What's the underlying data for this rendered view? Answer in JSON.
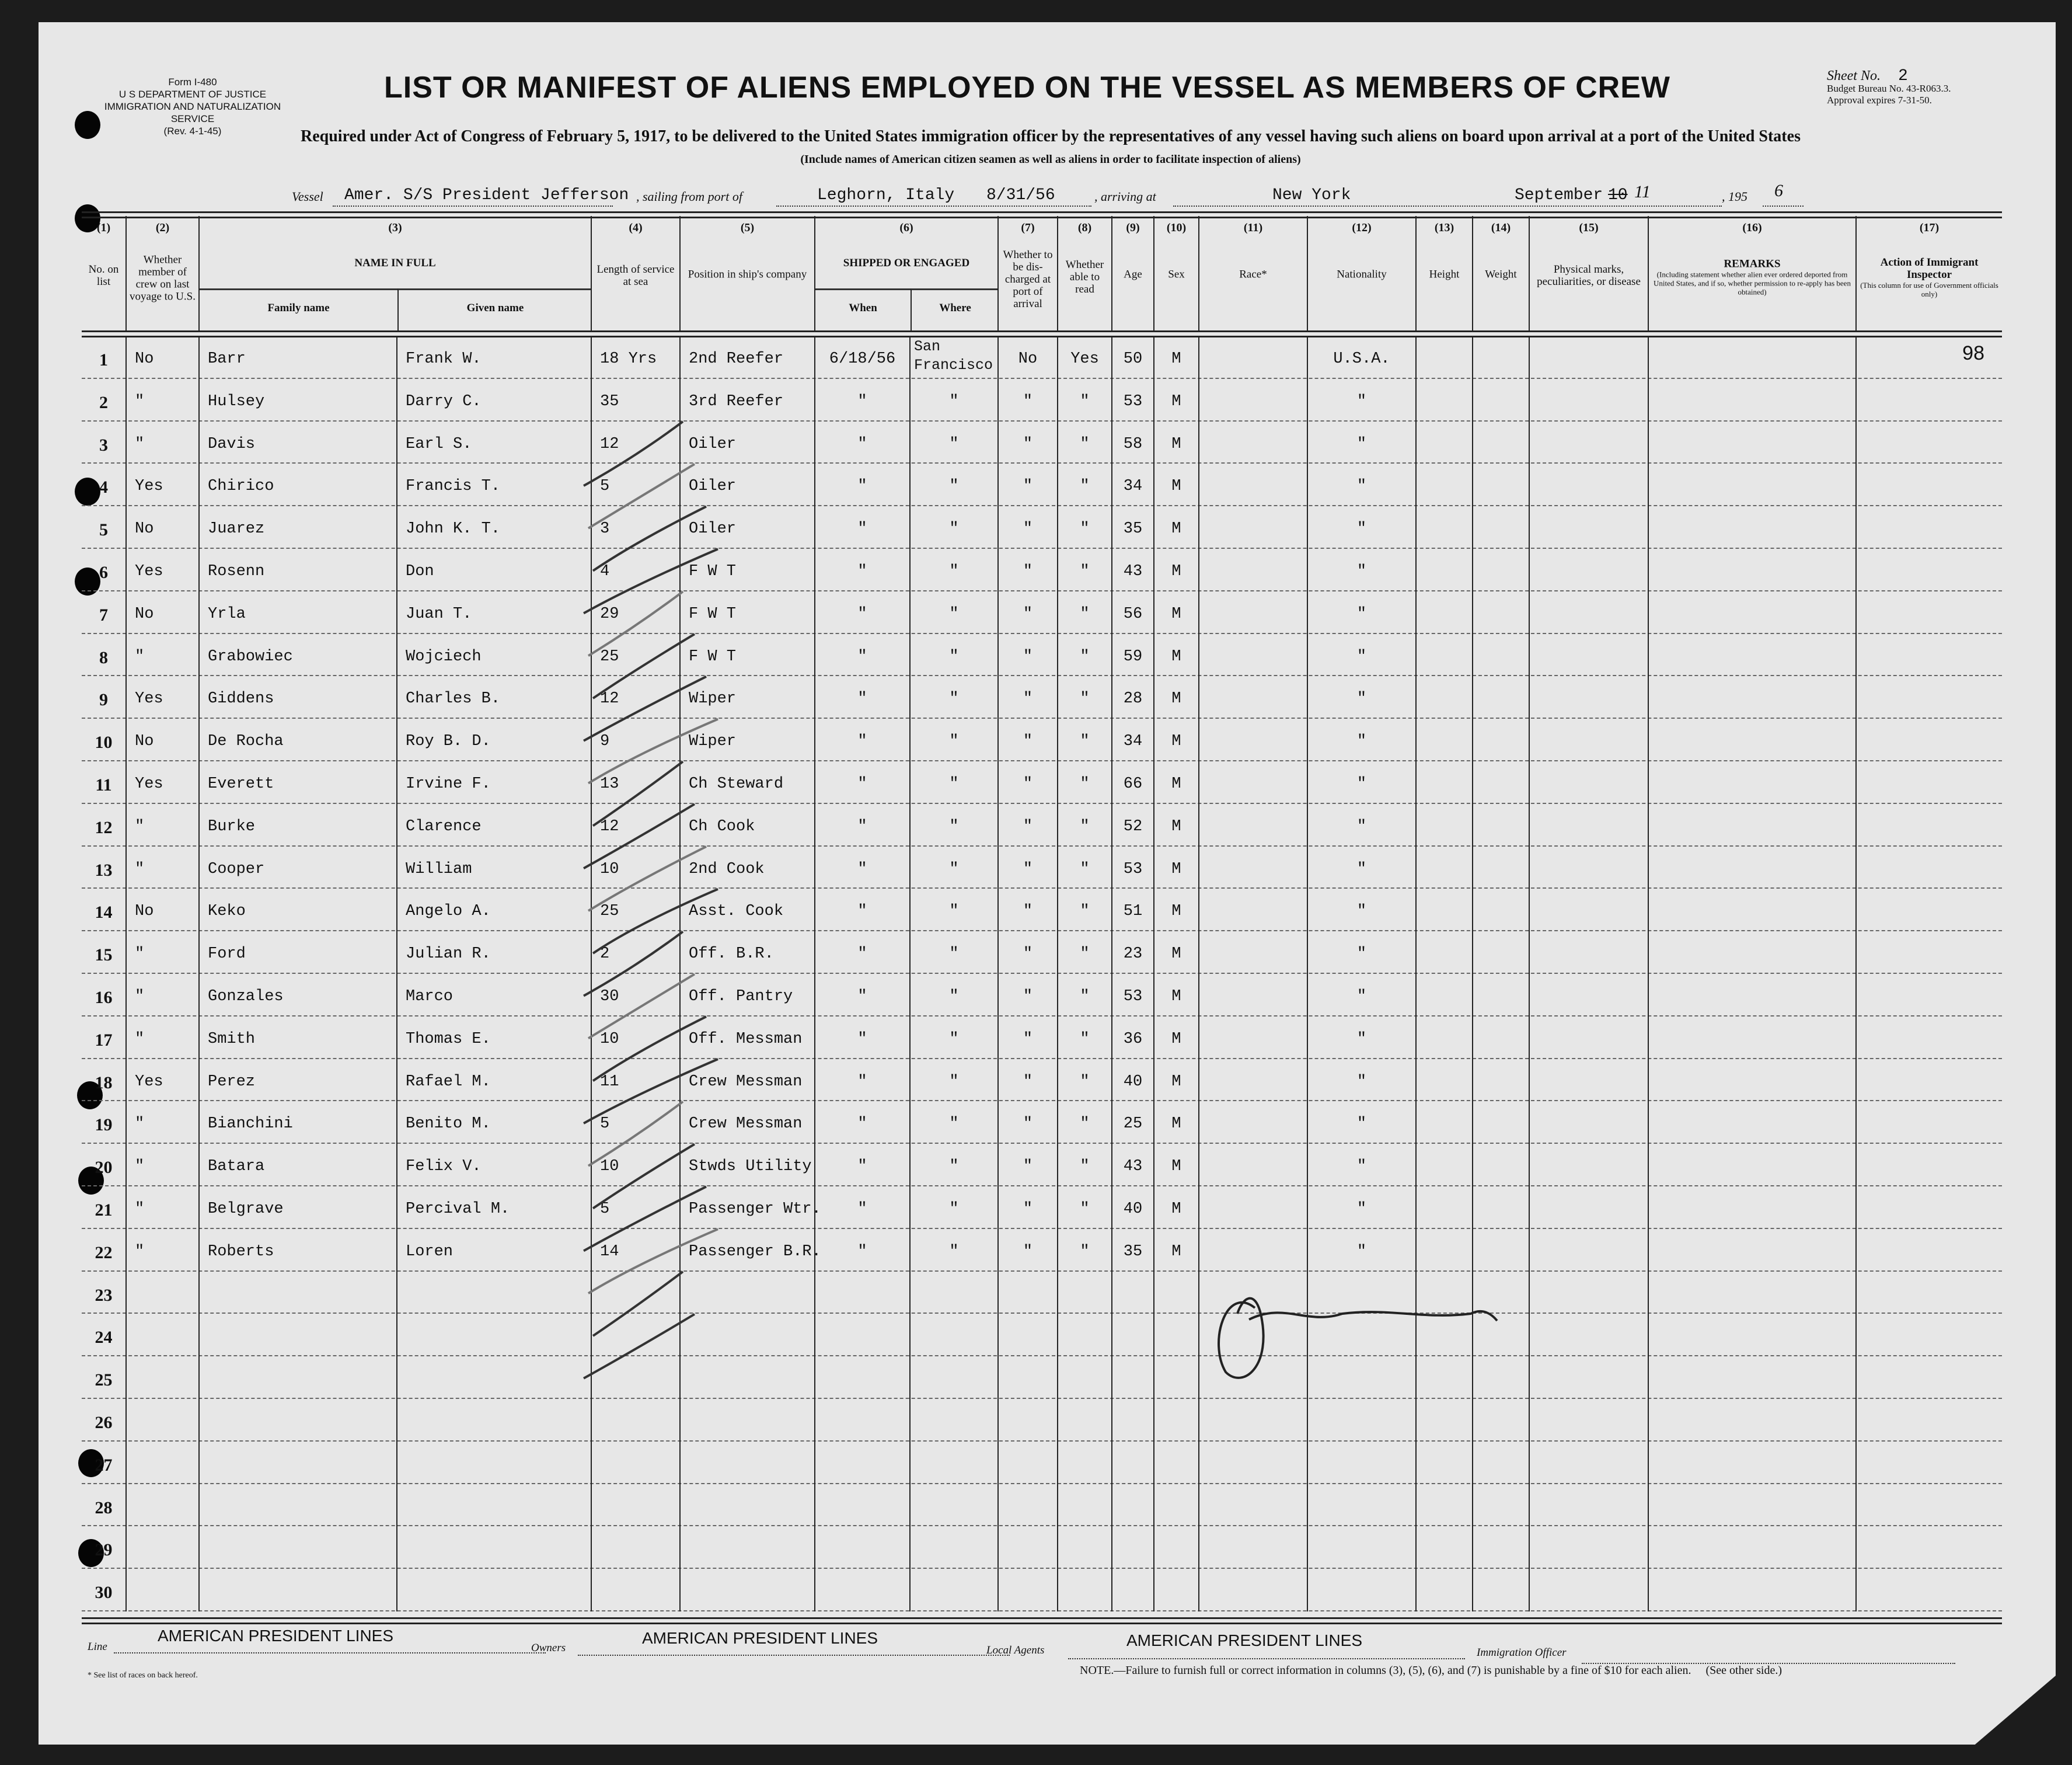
{
  "form": {
    "form_no": "Form I-480",
    "dept": "U S DEPARTMENT OF JUSTICE",
    "service": "IMMIGRATION AND NATURALIZATION SERVICE",
    "rev": "(Rev. 4-1-45)"
  },
  "title": "LIST OR MANIFEST OF ALIENS EMPLOYED ON THE VESSEL AS MEMBERS OF CREW",
  "sheet": {
    "label": "Sheet No.",
    "value": "2",
    "budget": "Budget Bureau No. 43-R063.3.",
    "approval": "Approval expires 7-31-50."
  },
  "subtitle": "Required under Act of Congress of February 5, 1917, to be delivered to the United States immigration officer by the representatives of any vessel having such aliens on board upon arrival at a port of the United States",
  "subtitle2": "(Include names of American citizen seamen as well as aliens in order to facilitate inspection of aliens)",
  "voyage": {
    "vessel_label": "Vessel",
    "vessel": "Amer. S/S President Jefferson",
    "sailing_label": ", sailing from port of",
    "port": "Leghorn, Italy",
    "sail_date": "8/31/56",
    "arriving_label": ", arriving at",
    "arrival_port": "New York",
    "arrival_month": "September",
    "arrival_day_struck": "10",
    "arrival_day": "11",
    "year_prefix": ", 195",
    "year_digit": "6"
  },
  "columns": {
    "c1": {
      "num": "(1)",
      "label": "No. on list"
    },
    "c2": {
      "num": "(2)",
      "label": "Whether member of crew on last voyage to U.S."
    },
    "c3": {
      "num": "(3)",
      "label": "NAME IN FULL",
      "sub1": "Family name",
      "sub2": "Given name"
    },
    "c4": {
      "num": "(4)",
      "label": "Length of service at sea"
    },
    "c5": {
      "num": "(5)",
      "label": "Position in ship's company"
    },
    "c6": {
      "num": "(6)",
      "label": "SHIPPED OR ENGAGED",
      "sub1": "When",
      "sub2": "Where"
    },
    "c7": {
      "num": "(7)",
      "label": "Whether to be dis-charged at port of arrival"
    },
    "c8": {
      "num": "(8)",
      "label": "Whether able to read"
    },
    "c9": {
      "num": "(9)",
      "label": "Age"
    },
    "c10": {
      "num": "(10)",
      "label": "Sex"
    },
    "c11": {
      "num": "(11)",
      "label": "Race*"
    },
    "c12": {
      "num": "(12)",
      "label": "Nationality"
    },
    "c13": {
      "num": "(13)",
      "label": "Height"
    },
    "c14": {
      "num": "(14)",
      "label": "Weight"
    },
    "c15": {
      "num": "(15)",
      "label": "Physical marks, peculiarities, or disease"
    },
    "c16": {
      "num": "(16)",
      "label": "REMARKS",
      "note": "(Including statement whether alien ever ordered deported from United States, and if so, whether permission to re-apply has been obtained)"
    },
    "c17": {
      "num": "(17)",
      "label": "Action of Immigrant Inspector",
      "note": "(This column for use of Government officials only)"
    }
  },
  "rows": [
    {
      "no": "1",
      "prev": "No",
      "family": "Barr",
      "given": "Frank W.",
      "length": "18 Yrs",
      "position": "2nd Reefer",
      "when": "6/18/56",
      "where": "San Francisco",
      "discharged": "No",
      "read": "Yes",
      "age": "50",
      "sex": "M",
      "nationality": "U.S.A.",
      "action": "98"
    },
    {
      "no": "2",
      "prev": "\"",
      "family": "Hulsey",
      "given": "Darry C.",
      "length": "35",
      "position": "3rd Reefer",
      "when": "\"",
      "where": "\"",
      "discharged": "\"",
      "read": "\"",
      "age": "53",
      "sex": "M",
      "nationality": "\""
    },
    {
      "no": "3",
      "prev": "\"",
      "family": "Davis",
      "given": "Earl S.",
      "length": "12",
      "position": "Oiler",
      "when": "\"",
      "where": "\"",
      "discharged": "\"",
      "read": "\"",
      "age": "58",
      "sex": "M",
      "nationality": "\""
    },
    {
      "no": "4",
      "prev": "Yes",
      "family": "Chirico",
      "given": "Francis T.",
      "length": "5",
      "position": "Oiler",
      "when": "\"",
      "where": "\"",
      "discharged": "\"",
      "read": "\"",
      "age": "34",
      "sex": "M",
      "nationality": "\""
    },
    {
      "no": "5",
      "prev": "No",
      "family": "Juarez",
      "given": "John K. T.",
      "length": "3",
      "position": "Oiler",
      "when": "\"",
      "where": "\"",
      "discharged": "\"",
      "read": "\"",
      "age": "35",
      "sex": "M",
      "nationality": "\""
    },
    {
      "no": "6",
      "prev": "Yes",
      "family": "Rosenn",
      "given": "Don",
      "length": "4",
      "position": "F W T",
      "when": "\"",
      "where": "\"",
      "discharged": "\"",
      "read": "\"",
      "age": "43",
      "sex": "M",
      "nationality": "\""
    },
    {
      "no": "7",
      "prev": "No",
      "family": "Yrla",
      "given": "Juan T.",
      "length": "29",
      "position": "F W T",
      "when": "\"",
      "where": "\"",
      "discharged": "\"",
      "read": "\"",
      "age": "56",
      "sex": "M",
      "nationality": "\""
    },
    {
      "no": "8",
      "prev": "\"",
      "family": "Grabowiec",
      "given": "Wojciech",
      "length": "25",
      "position": "F W T",
      "when": "\"",
      "where": "\"",
      "discharged": "\"",
      "read": "\"",
      "age": "59",
      "sex": "M",
      "nationality": "\""
    },
    {
      "no": "9",
      "prev": "Yes",
      "family": "Giddens",
      "given": "Charles B.",
      "length": "12",
      "position": "Wiper",
      "when": "\"",
      "where": "\"",
      "discharged": "\"",
      "read": "\"",
      "age": "28",
      "sex": "M",
      "nationality": "\""
    },
    {
      "no": "10",
      "prev": "No",
      "family": "De Rocha",
      "given": "Roy B. D.",
      "length": "9",
      "position": "Wiper",
      "when": "\"",
      "where": "\"",
      "discharged": "\"",
      "read": "\"",
      "age": "34",
      "sex": "M",
      "nationality": "\""
    },
    {
      "no": "11",
      "prev": "Yes",
      "family": "Everett",
      "given": "Irvine F.",
      "length": "13",
      "position": "Ch Steward",
      "when": "\"",
      "where": "\"",
      "discharged": "\"",
      "read": "\"",
      "age": "66",
      "sex": "M",
      "nationality": "\""
    },
    {
      "no": "12",
      "prev": "\"",
      "family": "Burke",
      "given": "Clarence",
      "length": "12",
      "position": "Ch Cook",
      "when": "\"",
      "where": "\"",
      "discharged": "\"",
      "read": "\"",
      "age": "52",
      "sex": "M",
      "nationality": "\""
    },
    {
      "no": "13",
      "prev": "\"",
      "family": "Cooper",
      "given": "William",
      "length": "10",
      "position": "2nd Cook",
      "when": "\"",
      "where": "\"",
      "discharged": "\"",
      "read": "\"",
      "age": "53",
      "sex": "M",
      "nationality": "\""
    },
    {
      "no": "14",
      "prev": "No",
      "family": "Keko",
      "given": "Angelo A.",
      "length": "25",
      "position": "Asst. Cook",
      "when": "\"",
      "where": "\"",
      "discharged": "\"",
      "read": "\"",
      "age": "51",
      "sex": "M",
      "nationality": "\""
    },
    {
      "no": "15",
      "prev": "\"",
      "family": "Ford",
      "given": "Julian R.",
      "length": "2",
      "position": "Off. B.R.",
      "when": "\"",
      "where": "\"",
      "discharged": "\"",
      "read": "\"",
      "age": "23",
      "sex": "M",
      "nationality": "\""
    },
    {
      "no": "16",
      "prev": "\"",
      "family": "Gonzales",
      "given": "Marco",
      "length": "30",
      "position": "Off. Pantry",
      "when": "\"",
      "where": "\"",
      "discharged": "\"",
      "read": "\"",
      "age": "53",
      "sex": "M",
      "nationality": "\""
    },
    {
      "no": "17",
      "prev": "\"",
      "family": "Smith",
      "given": "Thomas E.",
      "length": "10",
      "position": "Off. Messman",
      "when": "\"",
      "where": "\"",
      "discharged": "\"",
      "read": "\"",
      "age": "36",
      "sex": "M",
      "nationality": "\""
    },
    {
      "no": "18",
      "prev": "Yes",
      "family": "Perez",
      "given": "Rafael M.",
      "length": "11",
      "position": "Crew Messman",
      "when": "\"",
      "where": "\"",
      "discharged": "\"",
      "read": "\"",
      "age": "40",
      "sex": "M",
      "nationality": "\""
    },
    {
      "no": "19",
      "prev": "\"",
      "family": "Bianchini",
      "given": "Benito M.",
      "length": "5",
      "position": "Crew Messman",
      "when": "\"",
      "where": "\"",
      "discharged": "\"",
      "read": "\"",
      "age": "25",
      "sex": "M",
      "nationality": "\""
    },
    {
      "no": "20",
      "prev": "\"",
      "family": "Batara",
      "given": "Felix V.",
      "length": "10",
      "position": "Stwds Utility",
      "when": "\"",
      "where": "\"",
      "discharged": "\"",
      "read": "\"",
      "age": "43",
      "sex": "M",
      "nationality": "\""
    },
    {
      "no": "21",
      "prev": "\"",
      "family": "Belgrave",
      "given": "Percival M.",
      "length": "5",
      "position": "Passenger Wtr.",
      "when": "\"",
      "where": "\"",
      "discharged": "\"",
      "read": "\"",
      "age": "40",
      "sex": "M",
      "nationality": "\""
    },
    {
      "no": "22",
      "prev": "\"",
      "family": "Roberts",
      "given": "Loren",
      "length": "14",
      "position": "Passenger B.R.",
      "when": "\"",
      "where": "\"",
      "discharged": "\"",
      "read": "\"",
      "age": "35",
      "sex": "M",
      "nationality": "\""
    },
    {
      "no": "23"
    },
    {
      "no": "24"
    },
    {
      "no": "25"
    },
    {
      "no": "26"
    },
    {
      "no": "27"
    },
    {
      "no": "28"
    },
    {
      "no": "29"
    },
    {
      "no": "30"
    }
  ],
  "footer": {
    "line_label": "Line",
    "line": "AMERICAN PRESIDENT LINES",
    "owners_label": "Owners",
    "owners": "AMERICAN PRESIDENT LINES",
    "agents_label": "Local Agents",
    "agents": "AMERICAN PRESIDENT LINES",
    "officer_label": "Immigration Officer",
    "races_note": "* See list of races on back hereof.",
    "note": "NOTE.—Failure to furnish full or correct information in columns (3), (5), (6), and (7) is punishable by a fine of $10 for each alien.",
    "see_other": "(See other side.)"
  }
}
